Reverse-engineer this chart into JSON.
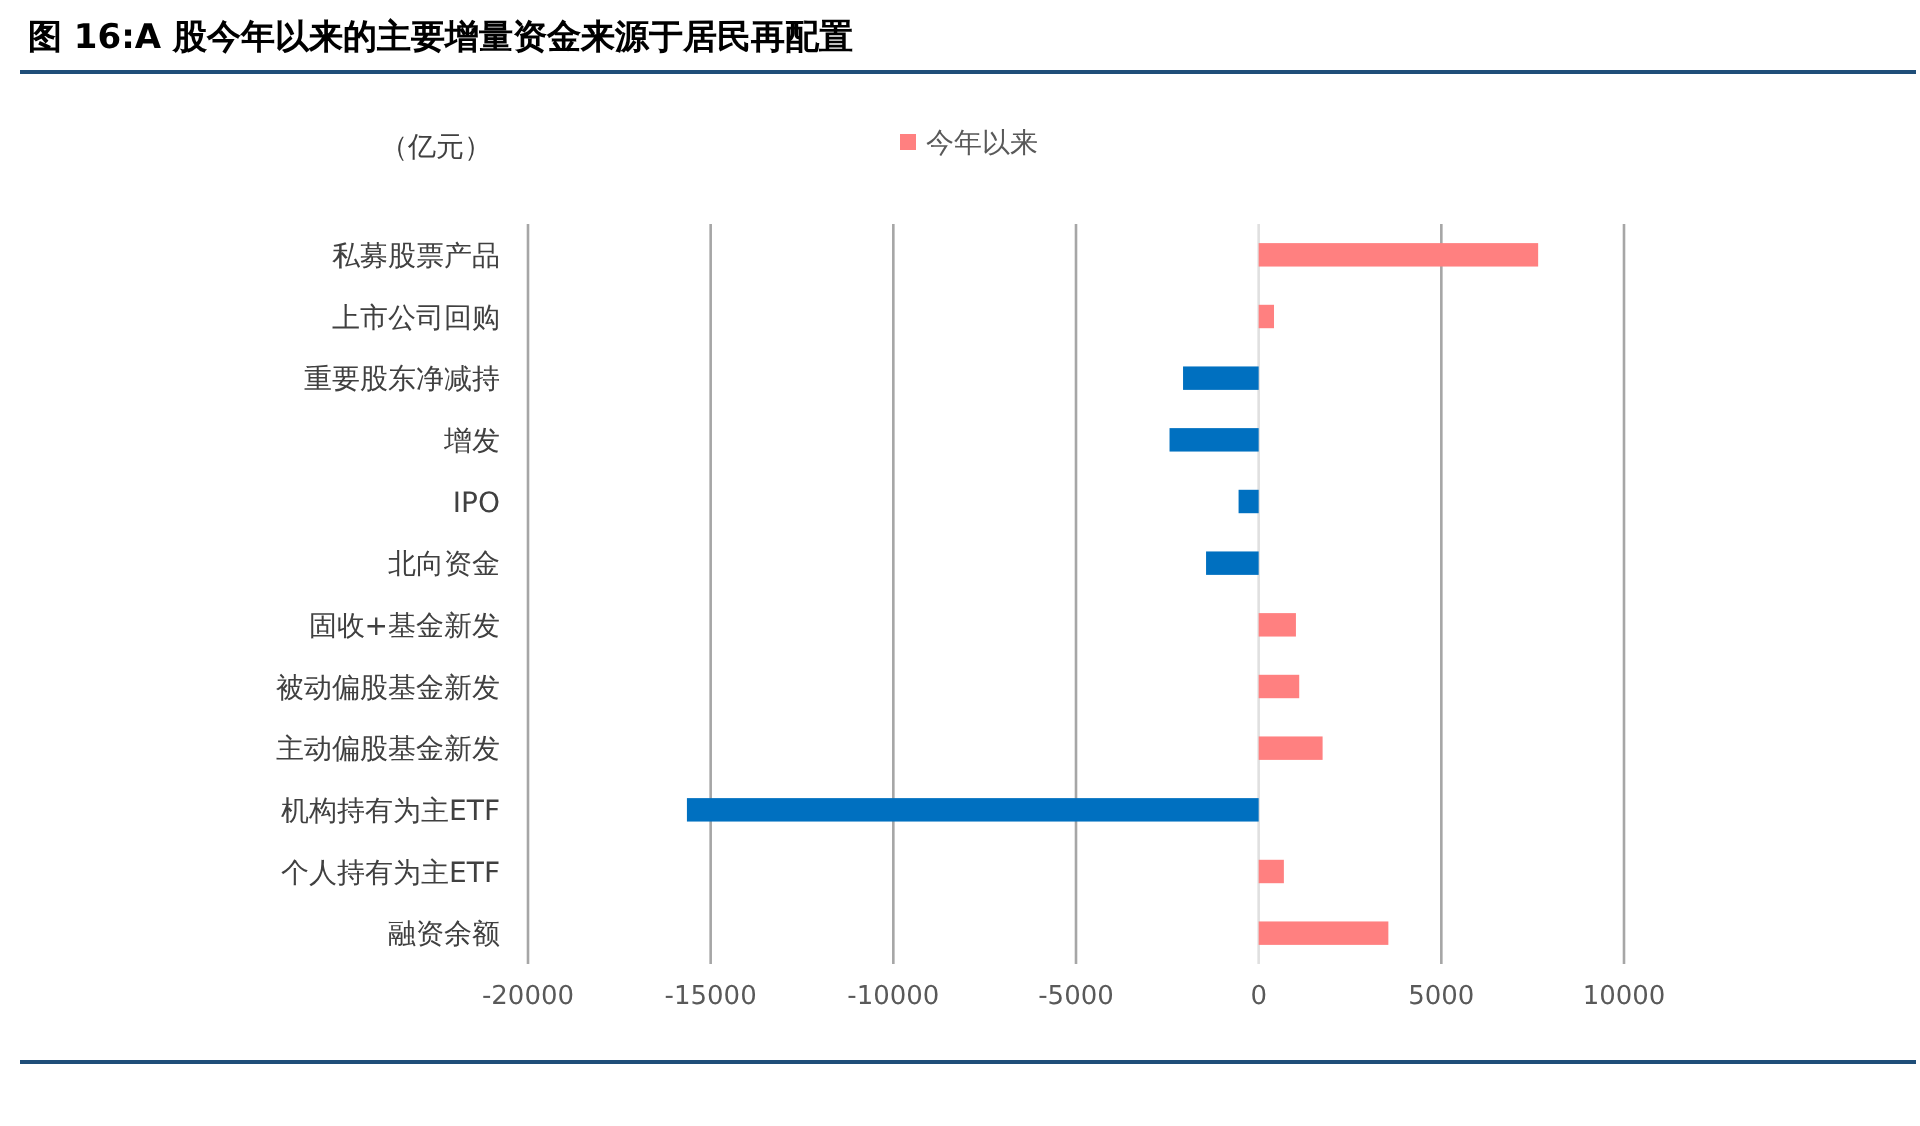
{
  "chart_data": {
    "type": "bar",
    "orientation": "horizontal",
    "title": "图 16:A 股今年以来的主要增量资金来源于居民再配置",
    "ylabel": "（亿元）",
    "categories": [
      "私募股票产品",
      "上市公司回购",
      "重要股东净减持",
      "增发",
      "IPO",
      "北向资金",
      "固收+基金新发",
      "被动偏股基金新发",
      "主动偏股基金新发",
      "机构持有为主ETF",
      "个人持有为主ETF",
      "融资余额"
    ],
    "series": [
      {
        "name": "今年以来",
        "color": "#ff8080",
        "colors": [
          "#ff8080",
          "#ff8080",
          "#0070c0",
          "#0070c0",
          "#0070c0",
          "#0070c0",
          "#ff8080",
          "#ff8080",
          "#ff8080",
          "#0070c0",
          "#ff8080",
          "#ff8080"
        ],
        "values": [
          7650,
          420,
          -2070,
          -2440,
          -550,
          -1440,
          1020,
          1110,
          1750,
          -15650,
          690,
          3550
        ]
      }
    ],
    "xlim": [
      -20000,
      10000
    ],
    "xticks": [
      -20000,
      -15000,
      -10000,
      -5000,
      0,
      5000,
      10000
    ],
    "grid": "x",
    "legend": "top"
  }
}
